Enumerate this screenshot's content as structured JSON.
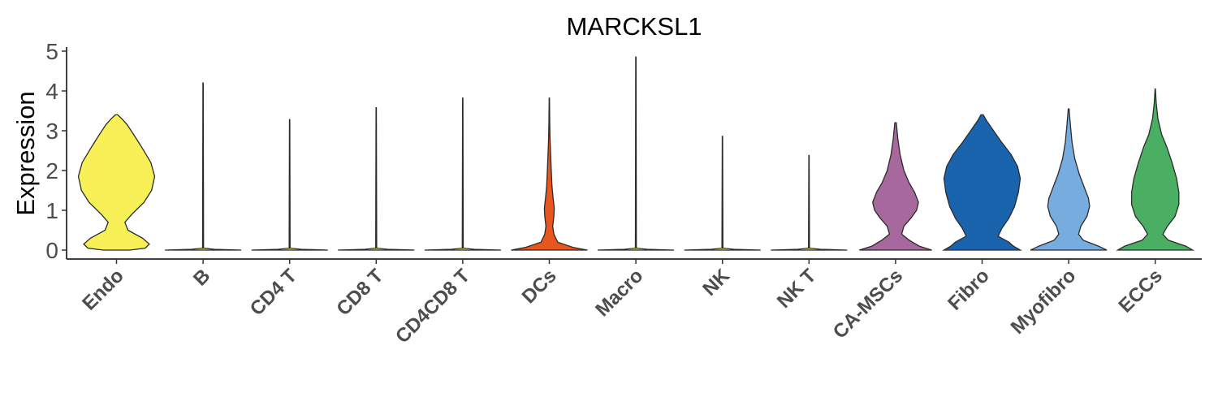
{
  "chart_data": {
    "type": "violin",
    "title": "MARCKSL1",
    "ylabel": "Expression",
    "xlabel": "",
    "ylim": [
      0,
      5
    ],
    "yticks": [
      0,
      1,
      2,
      3,
      4,
      5
    ],
    "grid": false,
    "legend": "none",
    "groups": [
      {
        "name": "Endo",
        "color": "#F7F057",
        "max": 3.4,
        "profile": [
          [
            0,
            0.35
          ],
          [
            0.05,
            0.75
          ],
          [
            0.15,
            0.86
          ],
          [
            0.3,
            0.68
          ],
          [
            0.5,
            0.3
          ],
          [
            0.7,
            0.22
          ],
          [
            0.9,
            0.4
          ],
          [
            1.2,
            0.72
          ],
          [
            1.5,
            0.92
          ],
          [
            1.85,
            1.0
          ],
          [
            2.2,
            0.9
          ],
          [
            2.6,
            0.65
          ],
          [
            2.9,
            0.45
          ],
          [
            3.15,
            0.28
          ],
          [
            3.3,
            0.14
          ],
          [
            3.4,
            0.03
          ]
        ]
      },
      {
        "name": "B",
        "color": "#F7F057",
        "max": 4.2,
        "profile": [
          [
            0,
            1.0
          ],
          [
            0.02,
            0.3
          ],
          [
            0.05,
            0.012
          ],
          [
            4.2,
            0.004
          ]
        ]
      },
      {
        "name": "CD4 T",
        "color": "#F7F057",
        "max": 3.28,
        "profile": [
          [
            0,
            1.0
          ],
          [
            0.02,
            0.3
          ],
          [
            0.05,
            0.012
          ],
          [
            3.28,
            0.004
          ]
        ]
      },
      {
        "name": "CD8 T",
        "color": "#F7F057",
        "max": 3.58,
        "profile": [
          [
            0,
            1.0
          ],
          [
            0.02,
            0.3
          ],
          [
            0.05,
            0.012
          ],
          [
            3.58,
            0.004
          ]
        ]
      },
      {
        "name": "CD4CD8 T",
        "color": "#F7F057",
        "max": 3.82,
        "profile": [
          [
            0,
            1.0
          ],
          [
            0.02,
            0.3
          ],
          [
            0.05,
            0.012
          ],
          [
            3.82,
            0.004
          ]
        ]
      },
      {
        "name": "DCs",
        "color": "#E8551F",
        "max": 3.82,
        "profile": [
          [
            0,
            1.0
          ],
          [
            0.07,
            0.62
          ],
          [
            0.2,
            0.22
          ],
          [
            0.4,
            0.12
          ],
          [
            0.6,
            0.09
          ],
          [
            0.85,
            0.12
          ],
          [
            1.05,
            0.13
          ],
          [
            1.3,
            0.1
          ],
          [
            1.6,
            0.07
          ],
          [
            2.0,
            0.05
          ],
          [
            2.4,
            0.035
          ],
          [
            2.8,
            0.02
          ],
          [
            3.2,
            0.01
          ],
          [
            3.82,
            0.004
          ]
        ]
      },
      {
        "name": "Macro",
        "color": "#F7F057",
        "max": 4.85,
        "profile": [
          [
            0,
            1.0
          ],
          [
            0.02,
            0.3
          ],
          [
            0.05,
            0.012
          ],
          [
            4.85,
            0.004
          ]
        ]
      },
      {
        "name": "NK",
        "color": "#F7F057",
        "max": 2.86,
        "profile": [
          [
            0,
            1.0
          ],
          [
            0.02,
            0.3
          ],
          [
            0.05,
            0.012
          ],
          [
            2.86,
            0.004
          ]
        ]
      },
      {
        "name": "NK T",
        "color": "#F7F057",
        "max": 2.38,
        "profile": [
          [
            0,
            1.0
          ],
          [
            0.02,
            0.3
          ],
          [
            0.05,
            0.012
          ],
          [
            2.38,
            0.004
          ]
        ]
      },
      {
        "name": "CA-MSCs",
        "color": "#A7689D",
        "max": 3.2,
        "profile": [
          [
            0,
            0.95
          ],
          [
            0.1,
            0.62
          ],
          [
            0.25,
            0.36
          ],
          [
            0.4,
            0.16
          ],
          [
            0.6,
            0.22
          ],
          [
            0.8,
            0.4
          ],
          [
            1.0,
            0.55
          ],
          [
            1.2,
            0.6
          ],
          [
            1.45,
            0.5
          ],
          [
            1.7,
            0.35
          ],
          [
            2.0,
            0.22
          ],
          [
            2.4,
            0.12
          ],
          [
            2.8,
            0.06
          ],
          [
            3.2,
            0.02
          ]
        ]
      },
      {
        "name": "Fibro",
        "color": "#1A64AE",
        "max": 3.4,
        "profile": [
          [
            0,
            1.0
          ],
          [
            0.1,
            0.82
          ],
          [
            0.2,
            0.7
          ],
          [
            0.35,
            0.42
          ],
          [
            0.55,
            0.52
          ],
          [
            0.8,
            0.7
          ],
          [
            1.1,
            0.85
          ],
          [
            1.45,
            0.95
          ],
          [
            1.8,
            1.0
          ],
          [
            2.1,
            0.93
          ],
          [
            2.4,
            0.76
          ],
          [
            2.7,
            0.52
          ],
          [
            3.0,
            0.3
          ],
          [
            3.25,
            0.12
          ],
          [
            3.4,
            0.03
          ]
        ]
      },
      {
        "name": "Myofibro",
        "color": "#77ADDE",
        "max": 3.55,
        "profile": [
          [
            0,
            1.0
          ],
          [
            0.1,
            0.78
          ],
          [
            0.25,
            0.38
          ],
          [
            0.4,
            0.26
          ],
          [
            0.6,
            0.32
          ],
          [
            0.85,
            0.48
          ],
          [
            1.1,
            0.55
          ],
          [
            1.3,
            0.52
          ],
          [
            1.6,
            0.4
          ],
          [
            1.9,
            0.28
          ],
          [
            2.3,
            0.16
          ],
          [
            2.7,
            0.09
          ],
          [
            3.1,
            0.05
          ],
          [
            3.55,
            0.01
          ]
        ]
      },
      {
        "name": "ECCs",
        "color": "#4BAF63",
        "max": 4.05,
        "profile": [
          [
            0,
            0.98
          ],
          [
            0.1,
            0.8
          ],
          [
            0.25,
            0.34
          ],
          [
            0.4,
            0.2
          ],
          [
            0.6,
            0.32
          ],
          [
            0.85,
            0.52
          ],
          [
            1.15,
            0.62
          ],
          [
            1.45,
            0.62
          ],
          [
            1.8,
            0.56
          ],
          [
            2.2,
            0.44
          ],
          [
            2.6,
            0.3
          ],
          [
            2.9,
            0.17
          ],
          [
            3.3,
            0.07
          ],
          [
            3.7,
            0.025
          ],
          [
            4.05,
            0.004
          ]
        ]
      }
    ]
  }
}
